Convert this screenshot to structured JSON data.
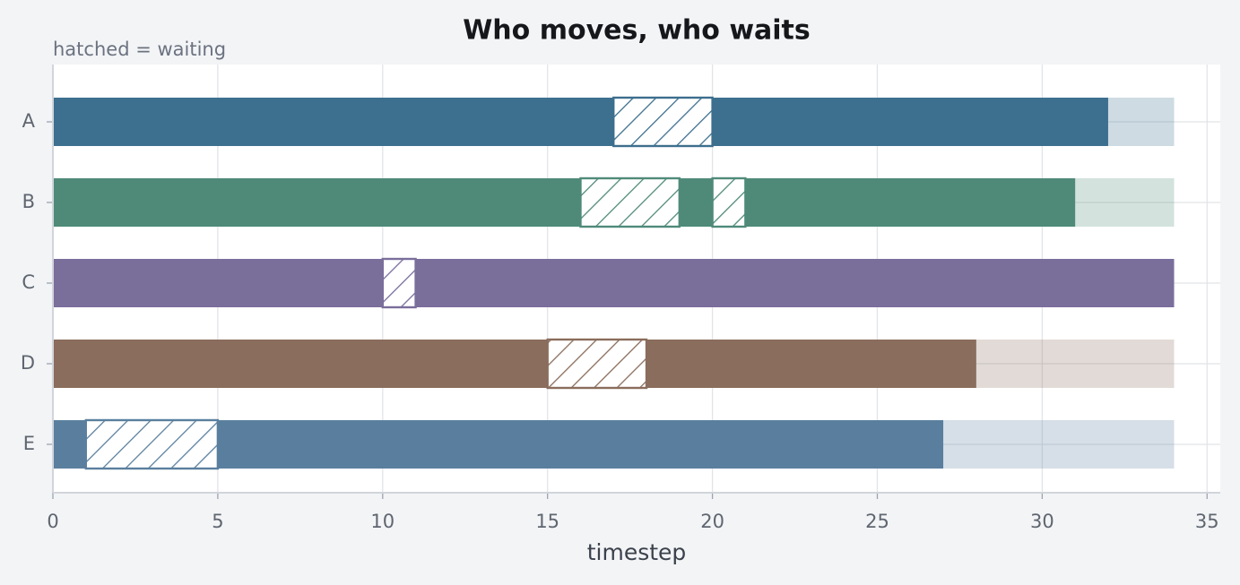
{
  "chart_data": {
    "type": "gantt",
    "title": "Who moves, who waits",
    "subtitle": "hatched = waiting",
    "x_label": "timestep",
    "horizon": 34,
    "series": [
      {
        "name": "A",
        "color": "#3d6f8e",
        "finish": 32,
        "waits": [
          [
            17,
            20
          ]
        ]
      },
      {
        "name": "B",
        "color": "#4f8a79",
        "finish": 31,
        "waits": [
          [
            16,
            19
          ],
          [
            20,
            21
          ]
        ]
      },
      {
        "name": "C",
        "color": "#7a6e9b",
        "finish": 34,
        "waits": [
          [
            10,
            11
          ]
        ]
      },
      {
        "name": "D",
        "color": "#8a6d5c",
        "finish": 28,
        "waits": [
          [
            15,
            18
          ]
        ]
      },
      {
        "name": "E",
        "color": "#5a7f9e",
        "finish": 27,
        "waits": [
          [
            1,
            5
          ]
        ]
      }
    ],
    "xlim": [
      0,
      35.4
    ],
    "xticks": [
      0,
      5,
      10,
      15,
      20,
      25,
      30,
      35
    ],
    "grid": true
  }
}
